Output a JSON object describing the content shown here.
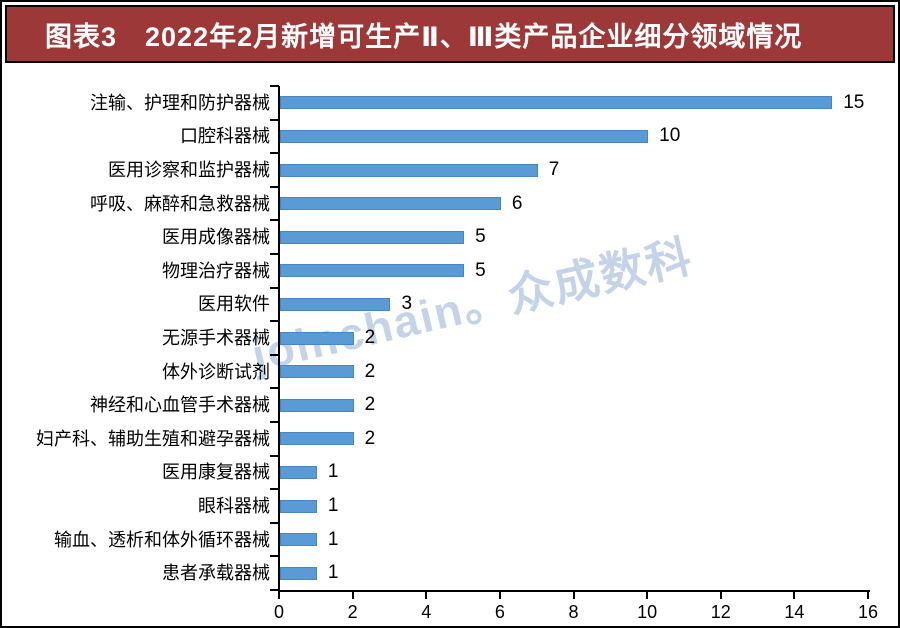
{
  "banner": {
    "title": "图表3　2022年2月新增可生产Ⅱ、Ⅲ类产品企业细分领域情况",
    "background": "#9D3838",
    "text_color": "#FFFFFF",
    "border_color": "#000000"
  },
  "watermark": {
    "text": "joinchain。众成数科",
    "color": "#C5D3E8"
  },
  "chart_data": {
    "type": "bar",
    "orientation": "horizontal",
    "title": "",
    "xlabel": "",
    "ylabel": "",
    "categories": [
      "注输、护理和防护器械",
      "口腔科器械",
      "医用诊察和监护器械",
      "呼吸、麻醉和急救器械",
      "医用成像器械",
      "物理治疗器械",
      "医用软件",
      "无源手术器械",
      "体外诊断试剂",
      "神经和心血管手术器械",
      "妇产科、辅助生殖和避孕器械",
      "医用康复器械",
      "眼科器械",
      "输血、透析和体外循环器械",
      "患者承载器械"
    ],
    "values": [
      15,
      10,
      7,
      6,
      5,
      5,
      3,
      2,
      2,
      2,
      2,
      1,
      1,
      1,
      1
    ],
    "data_labels": [
      "15",
      "10",
      "7",
      "6",
      "5",
      "5",
      "3",
      "2",
      "2",
      "2",
      "2",
      "1",
      "1",
      "1",
      "1"
    ],
    "xlim": [
      0,
      16
    ],
    "x_ticks": [
      0,
      2,
      4,
      6,
      8,
      10,
      12,
      14,
      16
    ],
    "grid": false,
    "legend": false,
    "bar_color": "#5B9BD5",
    "bar_border_color": "#4486C6",
    "axis_color": "#000000"
  }
}
